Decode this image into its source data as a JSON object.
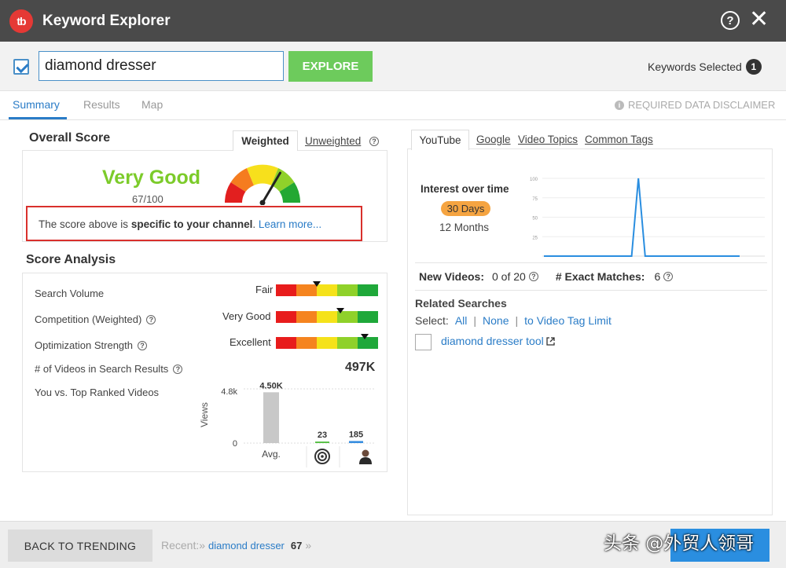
{
  "app": {
    "title": "Keyword Explorer",
    "logo_text": "tb"
  },
  "search": {
    "value": "diamond dresser",
    "explore_label": "EXPLORE",
    "keywords_selected_label": "Keywords Selected",
    "keywords_selected_count": "1"
  },
  "tabs": [
    {
      "label": "Summary"
    },
    {
      "label": "Results"
    },
    {
      "label": "Map"
    }
  ],
  "disclaimer": "REQUIRED DATA DISCLAIMER",
  "overall": {
    "heading": "Overall Score",
    "tab_weighted": "Weighted",
    "tab_unweighted": "Unweighted",
    "rating": "Very Good",
    "score": "67/100",
    "gauge_value": 0.67,
    "note_prefix": "The score above is ",
    "note_bold": "specific to your channel",
    "note_suffix": ". ",
    "note_link": "Learn more..."
  },
  "analysis": {
    "heading": "Score Analysis",
    "rows": [
      {
        "label": "Search Volume",
        "rating": "Fair",
        "level": 0.4
      },
      {
        "label": "Competition (Weighted)",
        "rating": "Very Good",
        "level": 0.63
      },
      {
        "label": "Optimization Strength",
        "rating": "Excellent",
        "level": 0.87
      }
    ],
    "videos_label": "# of Videos in Search Results",
    "videos_value": "497K",
    "top_ranked_label": "You vs. Top Ranked Videos"
  },
  "chart_data": [
    {
      "type": "bar",
      "categories": [
        "Avg.",
        "target",
        "you"
      ],
      "values": [
        4500,
        23,
        185
      ],
      "data_labels": [
        "4.50K",
        "23",
        "185"
      ],
      "ylabel": "Views",
      "ytick_labels": [
        "0",
        "4.8k"
      ],
      "ylim": [
        0,
        4800
      ],
      "colors": [
        "#c8c8c8",
        "#5cc14a",
        "#3a8fe0"
      ]
    },
    {
      "type": "line",
      "title": "Interest over time",
      "x": [
        0,
        1,
        2,
        3,
        4,
        5,
        6,
        7,
        8,
        9,
        10,
        11,
        12,
        13,
        14,
        15,
        16,
        17,
        18,
        19,
        20,
        21,
        22,
        23,
        24,
        25,
        26,
        27,
        28,
        29
      ],
      "series": [
        {
          "values": [
            0,
            0,
            0,
            0,
            0,
            0,
            0,
            0,
            0,
            0,
            0,
            0,
            0,
            0,
            100,
            0,
            0,
            0,
            0,
            0,
            0,
            0,
            0,
            0,
            0,
            0,
            0,
            0,
            0,
            0
          ]
        }
      ],
      "yticks": [
        "100",
        "75",
        "50",
        "25"
      ],
      "ylim": [
        0,
        100
      ],
      "color": "#2a8ee0"
    }
  ],
  "right": {
    "tabs": [
      "YouTube",
      "Google",
      "Video Topics",
      "Common Tags"
    ],
    "interest_label": "Interest over time",
    "range_active": "30 Days",
    "range_other": "12 Months",
    "new_videos_label": "New Videos:",
    "new_videos_value": "0 of 20",
    "exact_label": "# Exact Matches:",
    "exact_value": "6",
    "related_title": "Related Searches",
    "select_label": "Select:",
    "select_all": "All",
    "select_none": "None",
    "select_limit": "to Video Tag Limit",
    "related_items": [
      "diamond dresser tool"
    ]
  },
  "footer": {
    "back_label": "BACK TO TRENDING",
    "recent_label": "Recent:»",
    "recent_item": "diamond dresser",
    "recent_count": "67",
    "recent_arrow": "»"
  },
  "watermark": "头条 @外贸人领哥"
}
